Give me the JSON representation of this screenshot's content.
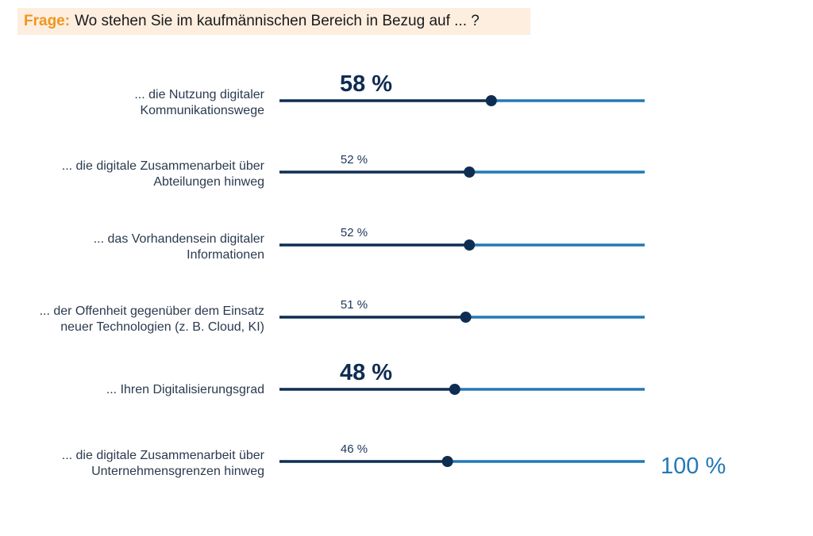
{
  "question": {
    "prefix": "Frage:",
    "text": "Wo stehen Sie im kaufmännischen Bereich in Bezug auf ... ?"
  },
  "colors": {
    "filled": "#0f2d52",
    "remaining": "#2379b5",
    "prefix": "#f0961e",
    "question_bg": "#fdeee0"
  },
  "chart_data": {
    "type": "bar",
    "orientation": "horizontal",
    "xlim": [
      0,
      100
    ],
    "scale_max_label": "100 %",
    "categories": [
      [
        "... die Nutzung digitaler",
        "Kommunikationswege"
      ],
      [
        "... die digitale Zusammenarbeit über",
        "Abteilungen hinweg"
      ],
      [
        "... das Vorhandensein digitaler",
        "Informationen"
      ],
      [
        "... der Offenheit gegenüber dem Einsatz",
        "neuer Technologien (z. B. Cloud, KI)"
      ],
      [
        "... Ihren Digitalisierungsgrad"
      ],
      [
        "... die digitale Zusammenarbeit über",
        "Unternehmensgrenzen hinweg"
      ]
    ],
    "values": [
      58,
      52,
      52,
      51,
      48,
      46
    ],
    "value_labels": [
      "58 %",
      "52 %",
      "52 %",
      "51 %",
      "48 %",
      "46 %"
    ],
    "highlighted": [
      true,
      false,
      false,
      false,
      true,
      false
    ]
  }
}
